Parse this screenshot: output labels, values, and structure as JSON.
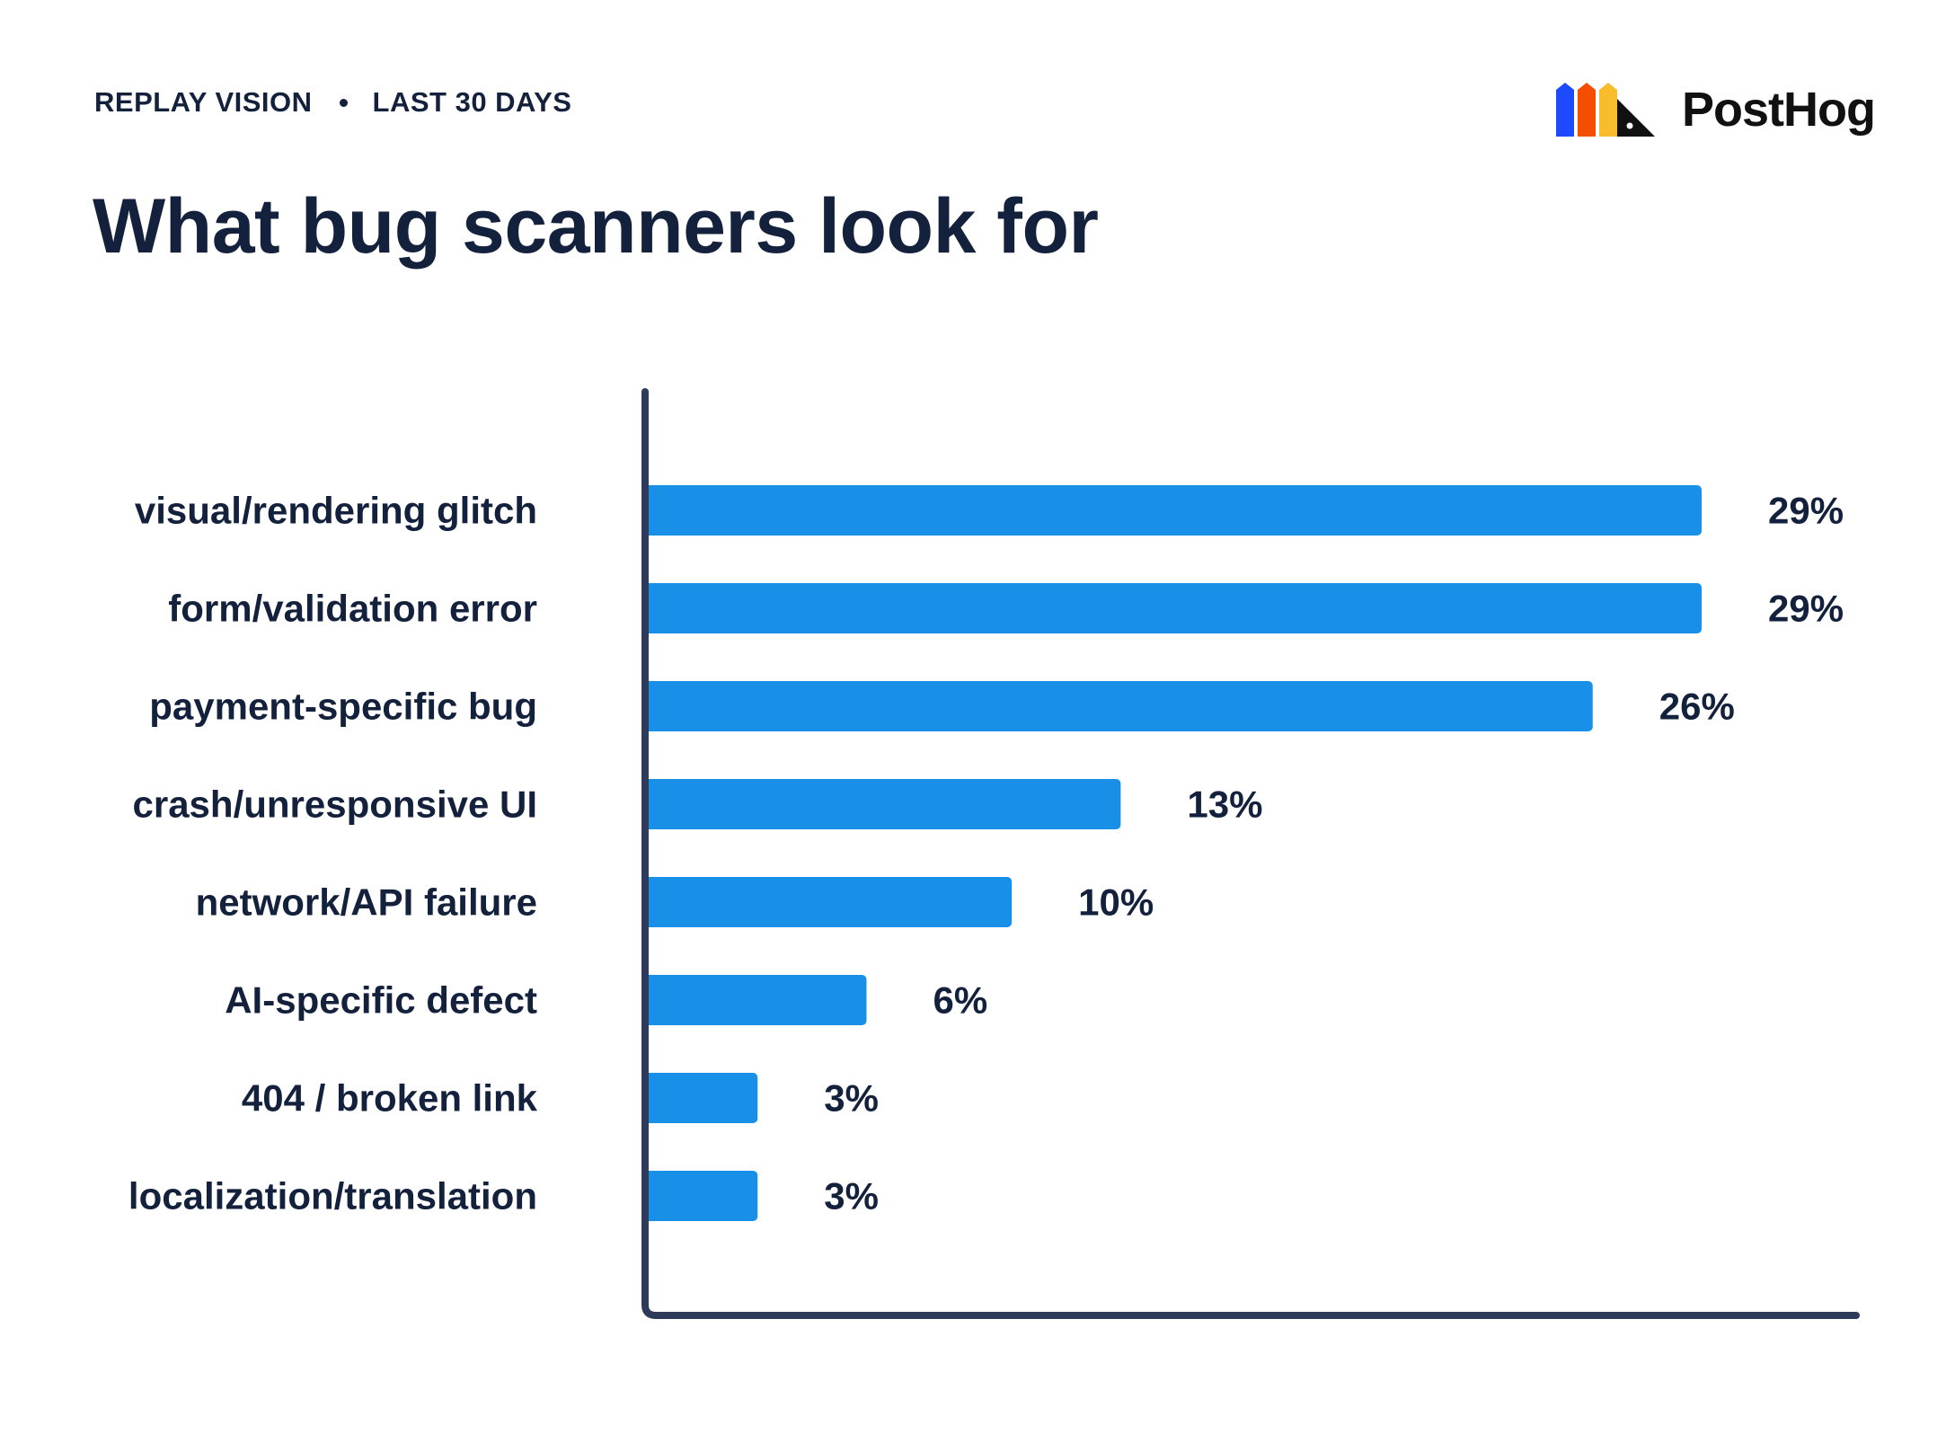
{
  "header": {
    "section": "REPLAY VISION",
    "period": "LAST 30 DAYS"
  },
  "logo": {
    "text": "PostHog",
    "icon": "posthog-hedgehog-logo-icon",
    "colors": [
      "#1d4aff",
      "#f54e00",
      "#f9bd2b",
      "#111111"
    ]
  },
  "colors": {
    "bar": "#1890e8",
    "axis": "#2e3a59",
    "text": "#14213d"
  },
  "chart_data": {
    "type": "bar",
    "orientation": "horizontal",
    "title": "What bug scanners look for",
    "categories": [
      "visual/rendering glitch",
      "form/validation error",
      "payment-specific bug",
      "crash/unresponsive UI",
      "network/API failure",
      "AI-specific defect",
      "404 / broken link",
      "localization/translation"
    ],
    "values": [
      29,
      29,
      26,
      13,
      10,
      6,
      3,
      3
    ],
    "value_labels": [
      "29%",
      "29%",
      "26%",
      "13%",
      "10%",
      "6%",
      "3%",
      "3%"
    ],
    "unit": "%",
    "xlim": [
      0,
      33
    ],
    "grid": false,
    "legend": "none"
  }
}
